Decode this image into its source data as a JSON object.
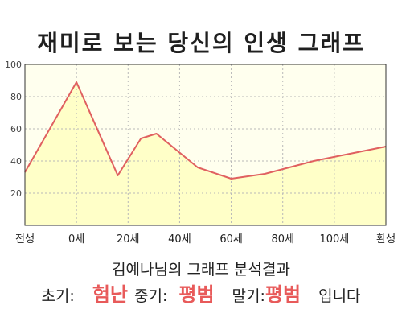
{
  "title": "재미로 보는 당신의 인생 그래프",
  "subtitle": "김예나님의 그래프 분석결과",
  "summary": {
    "early_label": "초기:",
    "early_value": "험난",
    "mid_label": "중기:",
    "mid_value": "평범",
    "late_label": "말기:",
    "late_value": "평범",
    "suffix": "입니다"
  },
  "colors": {
    "plot_background": "#ffffee",
    "area_fill": "#ffffc8",
    "line": "#e06060",
    "grid": "#b8b8b8",
    "accent_text": "#e85a5a"
  },
  "chart_data": {
    "type": "area",
    "title": "재미로 보는 당신의 인생 그래프",
    "xlabel": "",
    "ylabel": "",
    "x_ticks": [
      "전생",
      "0세",
      "20세",
      "40세",
      "60세",
      "80세",
      "100세",
      "환생"
    ],
    "y_ticks": [
      "20",
      "40",
      "60",
      "80",
      "100"
    ],
    "ylim": [
      0,
      100
    ],
    "xlim": [
      -20,
      120
    ],
    "grid": true,
    "series": [
      {
        "x": [
          -20,
          0,
          16,
          25,
          31,
          47,
          60,
          73,
          92,
          120
        ],
        "values": [
          33,
          89,
          31,
          54,
          57,
          36,
          29,
          32,
          40,
          49
        ]
      }
    ]
  }
}
